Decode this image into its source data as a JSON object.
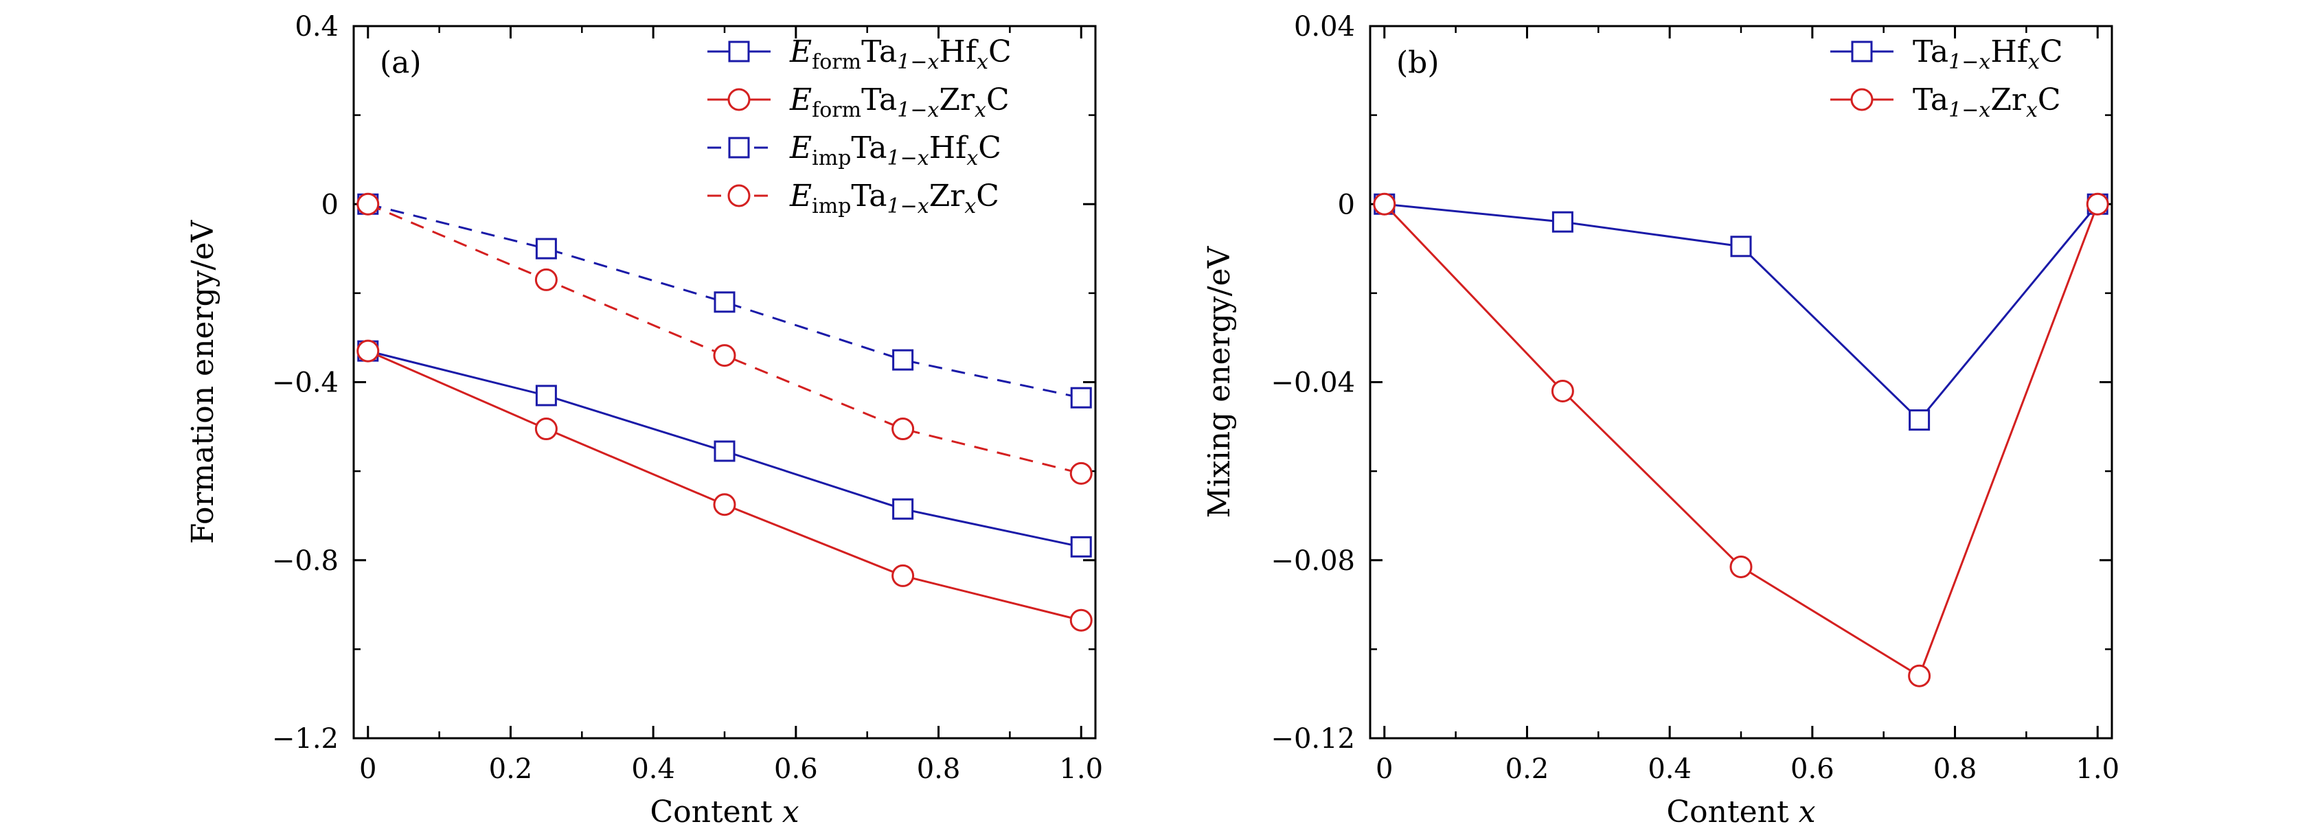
{
  "chart_data": [
    {
      "type": "line",
      "panel_label": "(a)",
      "xlabel": "Content",
      "xlabel_var": "x",
      "ylabel": "Formation energy/eV",
      "xlim": [
        -0.02,
        1.02
      ],
      "ylim": [
        -1.2,
        0.4
      ],
      "xticks": [
        0,
        0.2,
        0.4,
        0.6,
        0.8,
        1.0
      ],
      "xtick_labels": [
        "0",
        "0.2",
        "0.4",
        "0.6",
        "0.8",
        "1.0"
      ],
      "yticks": [
        0.4,
        0,
        -0.4,
        -0.8,
        -1.2
      ],
      "ytick_labels": [
        "0.4",
        "0",
        "−0.4",
        "−0.8",
        "−1.2"
      ],
      "grid": false,
      "legend_position": "top-right",
      "x": [
        0,
        0.25,
        0.5,
        0.75,
        1.0
      ],
      "series": [
        {
          "name": "E_form Ta1−xHfxC",
          "legend": {
            "e_sub": "form",
            "main": "Ta",
            "sub1": "1−x",
            "mid": "Hf",
            "sub2": "x",
            "end": "C"
          },
          "values": [
            -0.33,
            -0.43,
            -0.555,
            -0.685,
            -0.77
          ],
          "color": "#1a1aa8",
          "marker": "square",
          "dashed": false
        },
        {
          "name": "E_form Ta1−xZrxC",
          "legend": {
            "e_sub": "form",
            "main": "Ta",
            "sub1": "1−x",
            "mid": "Zr",
            "sub2": "x",
            "end": "C"
          },
          "values": [
            -0.33,
            -0.505,
            -0.675,
            -0.835,
            -0.935
          ],
          "color": "#d42020",
          "marker": "circle",
          "dashed": false
        },
        {
          "name": "E_imp Ta1−xHfxC",
          "legend": {
            "e_sub": "imp",
            "main": "Ta",
            "sub1": "1−x",
            "mid": "Hf",
            "sub2": "x",
            "end": "C"
          },
          "values": [
            0,
            -0.1,
            -0.22,
            -0.35,
            -0.435
          ],
          "color": "#1a1aa8",
          "marker": "square",
          "dashed": true
        },
        {
          "name": "E_imp Ta1−xZrxC",
          "legend": {
            "e_sub": "imp",
            "main": "Ta",
            "sub1": "1−x",
            "mid": "Zr",
            "sub2": "x",
            "end": "C"
          },
          "values": [
            0,
            -0.17,
            -0.34,
            -0.505,
            -0.605
          ],
          "color": "#d42020",
          "marker": "circle",
          "dashed": true
        }
      ]
    },
    {
      "type": "line",
      "panel_label": "(b)",
      "xlabel": "Content",
      "xlabel_var": "x",
      "ylabel": "Mixing energy/eV",
      "xlim": [
        -0.02,
        1.02
      ],
      "ylim": [
        -0.12,
        0.04
      ],
      "xticks": [
        0,
        0.2,
        0.4,
        0.6,
        0.8,
        1.0
      ],
      "xtick_labels": [
        "0",
        "0.2",
        "0.4",
        "0.6",
        "0.8",
        "1.0"
      ],
      "yticks": [
        0.04,
        0,
        -0.04,
        -0.08,
        -0.12
      ],
      "ytick_labels": [
        "0.04",
        "0",
        "−0.04",
        "−0.08",
        "−0.12"
      ],
      "grid": false,
      "legend_position": "top-right",
      "x": [
        0,
        0.25,
        0.5,
        0.75,
        1.0
      ],
      "series": [
        {
          "name": "Ta1−xHfxC",
          "legend": {
            "e_sub": "",
            "main": "Ta",
            "sub1": "1−x",
            "mid": "Hf",
            "sub2": "x",
            "end": "C"
          },
          "values": [
            0,
            -0.004,
            -0.0095,
            -0.0485,
            0
          ],
          "color": "#1a1aa8",
          "marker": "square",
          "dashed": false
        },
        {
          "name": "Ta1−xZrxC",
          "legend": {
            "e_sub": "",
            "main": "Ta",
            "sub1": "1−x",
            "mid": "Zr",
            "sub2": "x",
            "end": "C"
          },
          "values": [
            0,
            -0.042,
            -0.0815,
            -0.106,
            0
          ],
          "color": "#d42020",
          "marker": "circle",
          "dashed": false
        }
      ]
    }
  ]
}
